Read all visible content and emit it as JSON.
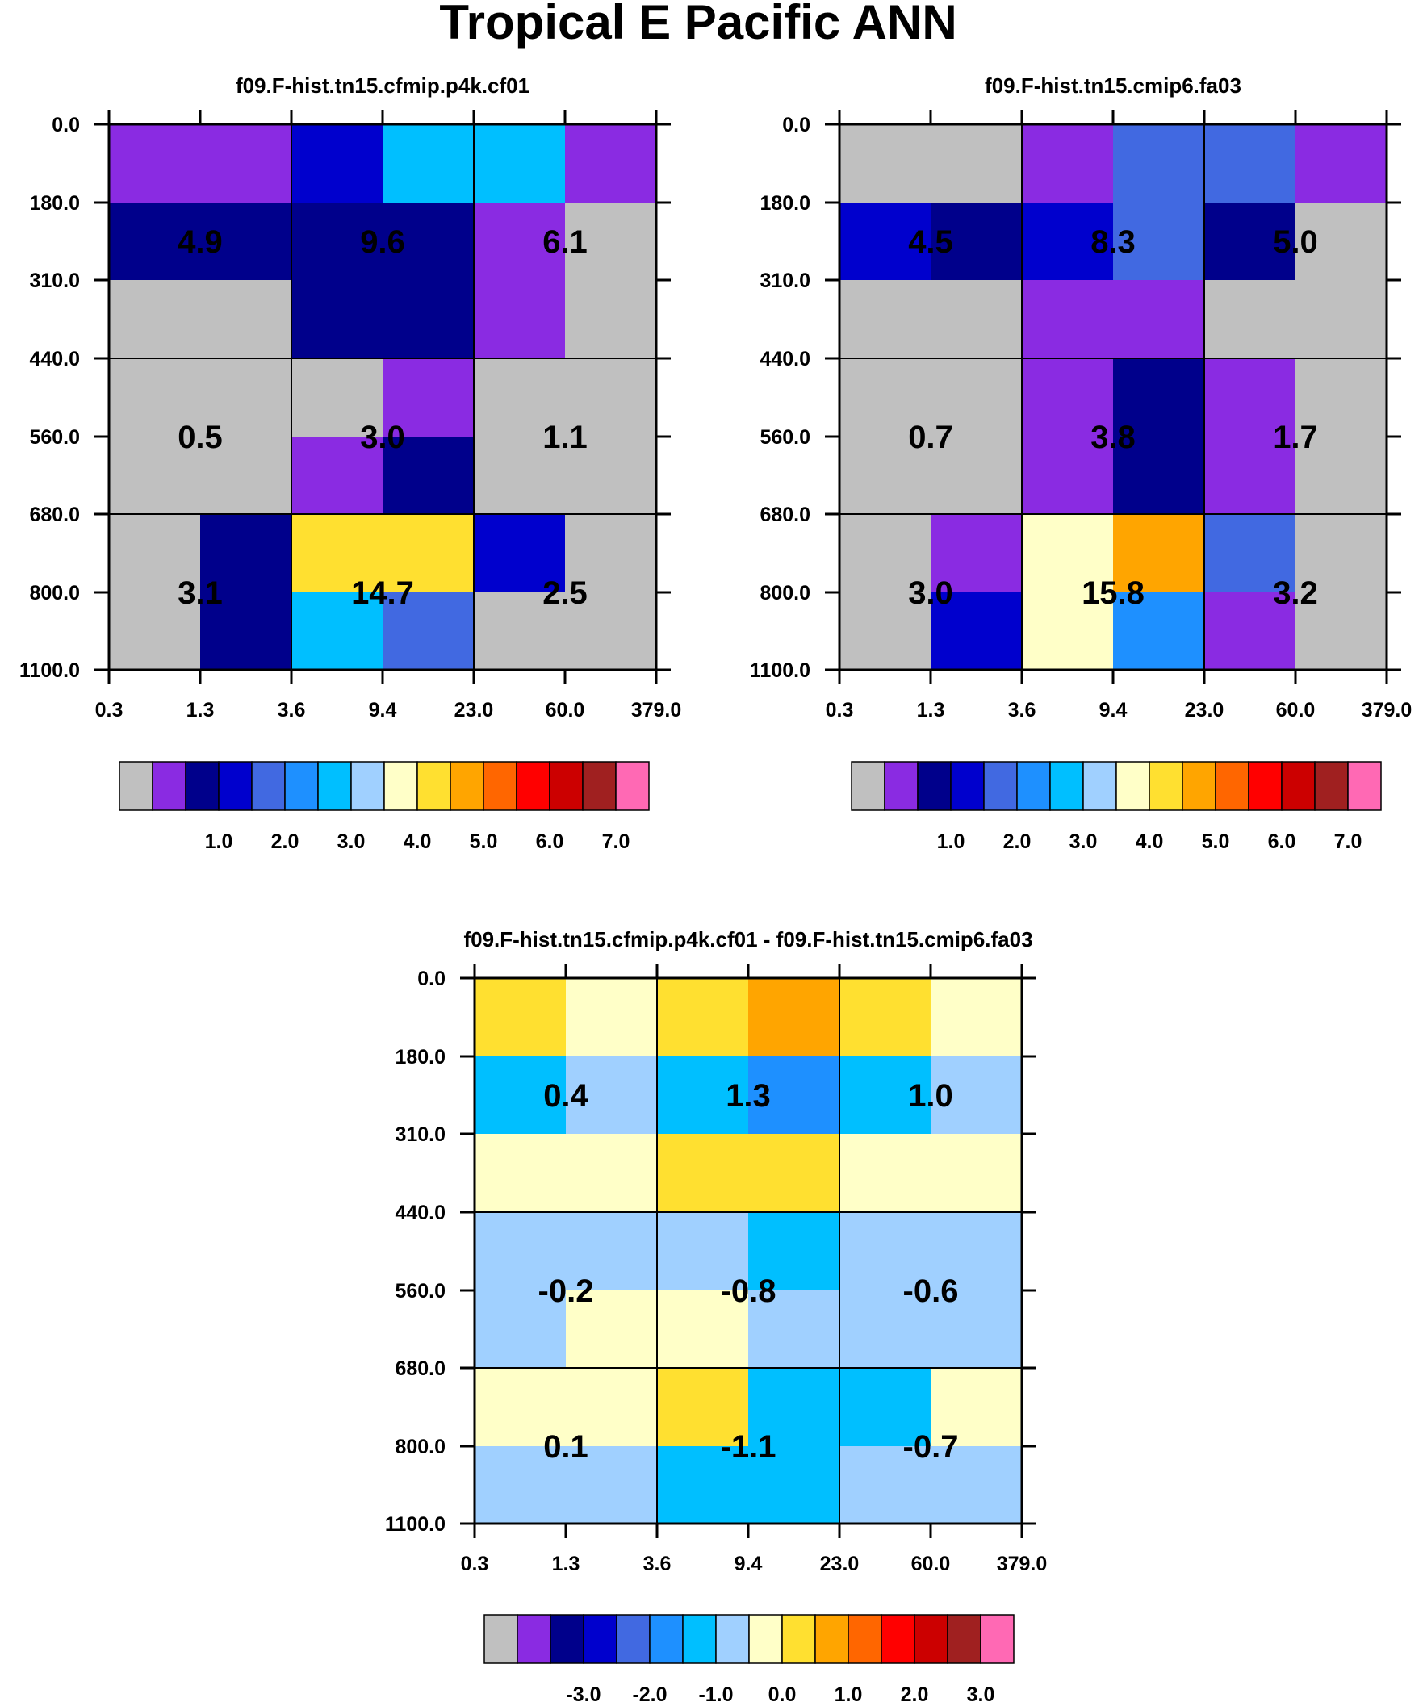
{
  "chart_data": {
    "type": "heatmap",
    "title": "Tropical E Pacific ANN",
    "palette": [
      "#c0c0c0",
      "#8a2be2",
      "#00008b",
      "#0000cd",
      "#4169e1",
      "#1e90ff",
      "#00bfff",
      "#a0d0ff",
      "#ffffc8",
      "#ffe030",
      "#ffa500",
      "#ff6600",
      "#ff0000",
      "#cc0000",
      "#a02020",
      "#ff69b4"
    ],
    "xticks": [
      "0.3",
      "1.3",
      "3.6",
      "9.4",
      "23.0",
      "60.0",
      "379.0"
    ],
    "yticks": [
      "0.0",
      "180.0",
      "310.0",
      "440.0",
      "560.0",
      "680.0",
      "800.0",
      "1100.0"
    ],
    "panels": [
      {
        "title": "f09.F-hist.tn15.cfmip.p4k.cf01",
        "cells": [
          [
            1,
            1,
            3,
            6,
            6,
            1
          ],
          [
            2,
            2,
            2,
            2,
            1,
            0
          ],
          [
            0,
            0,
            2,
            2,
            1,
            0
          ],
          [
            0,
            0,
            0,
            1,
            0,
            0
          ],
          [
            0,
            0,
            1,
            2,
            0,
            0
          ],
          [
            0,
            2,
            9,
            9,
            3,
            0
          ],
          [
            0,
            2,
            6,
            4,
            0,
            0
          ]
        ],
        "values": [
          [
            "4.9",
            "9.6",
            "6.1"
          ],
          [
            "0.5",
            "3.0",
            "1.1"
          ],
          [
            "3.1",
            "14.7",
            "2.5"
          ]
        ],
        "colorbar_labels": [
          "1.0",
          "2.0",
          "3.0",
          "4.0",
          "5.0",
          "6.0",
          "7.0"
        ]
      },
      {
        "title": "f09.F-hist.tn15.cmip6.fa03",
        "cells": [
          [
            0,
            0,
            1,
            4,
            4,
            1
          ],
          [
            3,
            2,
            3,
            4,
            2,
            0
          ],
          [
            0,
            0,
            1,
            1,
            0,
            0
          ],
          [
            0,
            0,
            1,
            2,
            1,
            0
          ],
          [
            0,
            0,
            1,
            2,
            1,
            0
          ],
          [
            0,
            1,
            8,
            10,
            4,
            0
          ],
          [
            0,
            3,
            8,
            5,
            1,
            0
          ]
        ],
        "values": [
          [
            "4.5",
            "8.3",
            "5.0"
          ],
          [
            "0.7",
            "3.8",
            "1.7"
          ],
          [
            "3.0",
            "15.8",
            "3.2"
          ]
        ],
        "colorbar_labels": [
          "1.0",
          "2.0",
          "3.0",
          "4.0",
          "5.0",
          "6.0",
          "7.0"
        ]
      },
      {
        "title": "f09.F-hist.tn15.cfmip.p4k.cf01 - f09.F-hist.tn15.cmip6.fa03",
        "cells": [
          [
            9,
            8,
            9,
            10,
            9,
            8
          ],
          [
            6,
            7,
            6,
            5,
            6,
            7
          ],
          [
            8,
            8,
            9,
            9,
            8,
            8
          ],
          [
            7,
            7,
            7,
            6,
            7,
            7
          ],
          [
            7,
            8,
            8,
            7,
            7,
            7
          ],
          [
            8,
            8,
            9,
            6,
            6,
            8
          ],
          [
            7,
            7,
            6,
            6,
            7,
            7
          ]
        ],
        "values": [
          [
            "0.4",
            "1.3",
            "1.0"
          ],
          [
            "-0.2",
            "-0.8",
            "-0.6"
          ],
          [
            "0.1",
            "-1.1",
            "-0.7"
          ]
        ],
        "colorbar_labels": [
          "-3.0",
          "-2.0",
          "-1.0",
          "0.0",
          "1.0",
          "2.0",
          "3.0"
        ]
      }
    ]
  }
}
